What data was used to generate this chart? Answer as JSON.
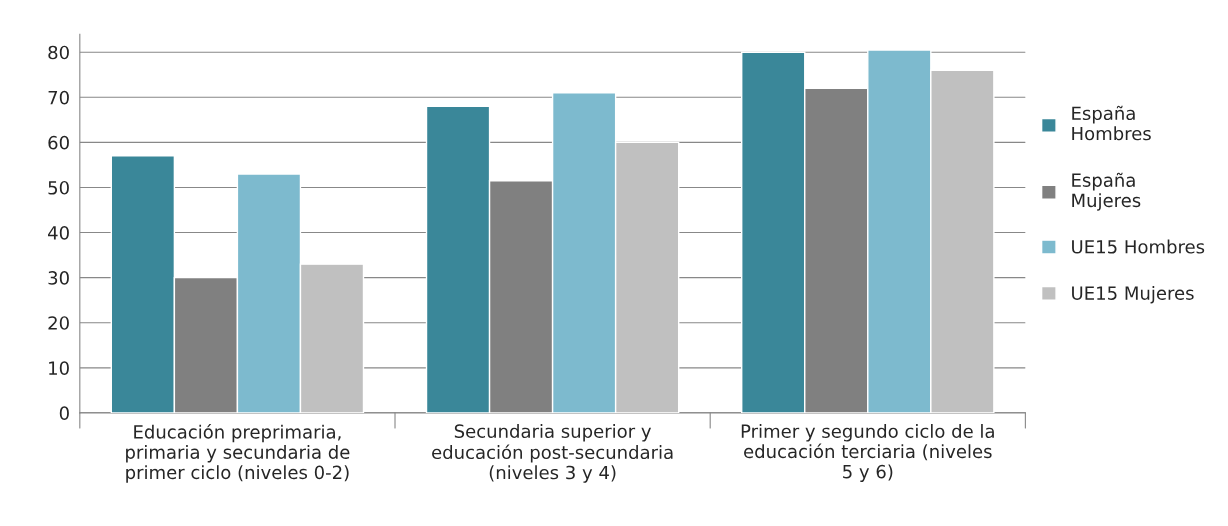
{
  "chart_data": {
    "type": "bar",
    "categories": [
      "Educación preprimaria,\nprimaria y secundaria de\nprimer ciclo (niveles 0-2)",
      "Secundaria superior y\neducación post-secundaria\n(niveles 3 y 4)",
      "Primer y segundo ciclo de la\neducación terciaria (niveles\n5 y 6)"
    ],
    "series": [
      {
        "name": "España\nHombres",
        "color": "#3a8799",
        "values": [
          57,
          68,
          80
        ]
      },
      {
        "name": "España\nMujeres",
        "color": "#808080",
        "values": [
          30,
          51.5,
          72
        ]
      },
      {
        "name": "UE15 Hombres",
        "color": "#7dbace",
        "values": [
          53,
          71,
          80.5
        ]
      },
      {
        "name": "UE15 Mujeres",
        "color": "#c0c0c0",
        "values": [
          33,
          60,
          76
        ]
      }
    ],
    "ylim": [
      0,
      84
    ],
    "yticks": [
      0,
      10,
      20,
      30,
      40,
      50,
      60,
      70,
      80
    ],
    "grid": "y",
    "legend": "right"
  }
}
